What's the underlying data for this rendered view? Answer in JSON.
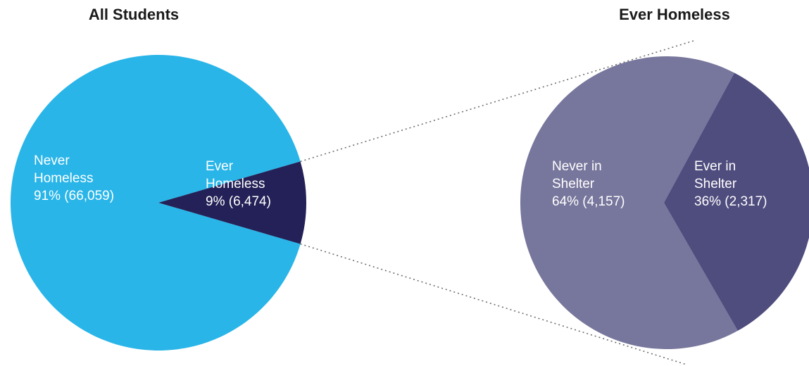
{
  "chart_data": [
    {
      "type": "pie",
      "title": "All Students",
      "slices": [
        {
          "label_lines": [
            "Never",
            "Homeless",
            "91% (66,059)"
          ],
          "name": "Never Homeless",
          "percent": 91,
          "count": 66059,
          "color": "#29B5E8"
        },
        {
          "label_lines": [
            "Ever",
            "Homeless",
            "9% (6,474)"
          ],
          "name": "Ever Homeless",
          "percent": 9,
          "count": 6474,
          "color": "#232157"
        }
      ]
    },
    {
      "type": "pie",
      "title": "Ever Homeless",
      "slices": [
        {
          "label_lines": [
            "Never in",
            "Shelter",
            "64% (4,157)"
          ],
          "name": "Never in Shelter",
          "percent": 64,
          "count": 4157,
          "color": "#77769C"
        },
        {
          "label_lines": [
            "Ever in",
            "Shelter",
            "36% (2,317)"
          ],
          "name": "Ever in Shelter",
          "percent": 36,
          "count": 2317,
          "color": "#4F4C7E"
        }
      ]
    }
  ]
}
